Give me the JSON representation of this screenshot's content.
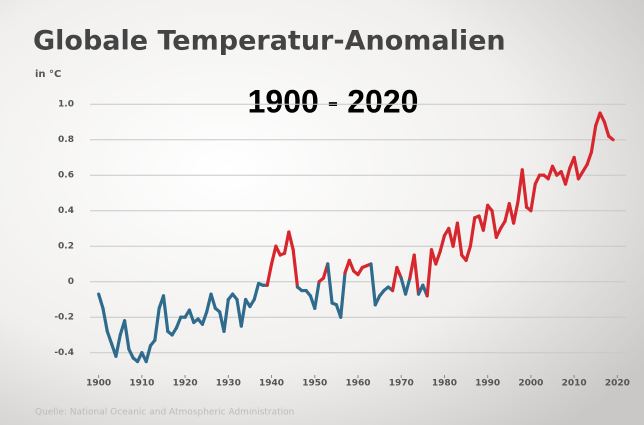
{
  "chart_data": {
    "type": "line",
    "title": "Globale Temperatur-Anomalien",
    "subtitle": "in °C",
    "annotation": "1900 - 2020",
    "source": "Quelle: National Oceanic and Atmospheric Administration",
    "colors": {
      "above": "#d7262d",
      "below": "#2f6b8c"
    },
    "x": [
      1900,
      1901,
      1902,
      1903,
      1904,
      1905,
      1906,
      1907,
      1908,
      1909,
      1910,
      1911,
      1912,
      1913,
      1914,
      1915,
      1916,
      1917,
      1918,
      1919,
      1920,
      1921,
      1922,
      1923,
      1924,
      1925,
      1926,
      1927,
      1928,
      1929,
      1930,
      1931,
      1932,
      1933,
      1934,
      1935,
      1936,
      1937,
      1938,
      1939,
      1940,
      1941,
      1942,
      1943,
      1944,
      1945,
      1946,
      1947,
      1948,
      1949,
      1950,
      1951,
      1952,
      1953,
      1954,
      1955,
      1956,
      1957,
      1958,
      1959,
      1960,
      1961,
      1962,
      1963,
      1964,
      1965,
      1966,
      1967,
      1968,
      1969,
      1970,
      1971,
      1972,
      1973,
      1974,
      1975,
      1976,
      1977,
      1978,
      1979,
      1980,
      1981,
      1982,
      1983,
      1984,
      1985,
      1986,
      1987,
      1988,
      1989,
      1990,
      1991,
      1992,
      1993,
      1994,
      1995,
      1996,
      1997,
      1998,
      1999,
      2000,
      2001,
      2002,
      2003,
      2004,
      2005,
      2006,
      2007,
      2008,
      2009,
      2010,
      2011,
      2012,
      2013,
      2014,
      2015,
      2016,
      2017,
      2018,
      2019
    ],
    "values": [
      -0.07,
      -0.15,
      -0.28,
      -0.35,
      -0.42,
      -0.3,
      -0.22,
      -0.38,
      -0.43,
      -0.45,
      -0.4,
      -0.45,
      -0.36,
      -0.33,
      -0.15,
      -0.08,
      -0.28,
      -0.3,
      -0.26,
      -0.2,
      -0.2,
      -0.16,
      -0.23,
      -0.21,
      -0.24,
      -0.17,
      -0.07,
      -0.15,
      -0.17,
      -0.28,
      -0.1,
      -0.07,
      -0.1,
      -0.25,
      -0.1,
      -0.14,
      -0.1,
      -0.01,
      -0.02,
      -0.02,
      0.1,
      0.2,
      0.15,
      0.16,
      0.28,
      0.18,
      -0.03,
      -0.05,
      -0.05,
      -0.08,
      -0.15,
      0,
      0.02,
      0.1,
      -0.12,
      -0.13,
      -0.2,
      0.05,
      0.12,
      0.06,
      0.04,
      0.08,
      0.09,
      0.1,
      -0.13,
      -0.08,
      -0.05,
      -0.03,
      -0.05,
      0.08,
      0.02,
      -0.07,
      0.02,
      0.15,
      -0.07,
      -0.02,
      -0.08,
      0.18,
      0.1,
      0.17,
      0.26,
      0.3,
      0.2,
      0.33,
      0.15,
      0.12,
      0.2,
      0.36,
      0.37,
      0.29,
      0.43,
      0.4,
      0.25,
      0.3,
      0.34,
      0.44,
      0.33,
      0.45,
      0.63,
      0.42,
      0.4,
      0.55,
      0.6,
      0.6,
      0.58,
      0.65,
      0.6,
      0.62,
      0.55,
      0.64,
      0.7,
      0.58,
      0.62,
      0.66,
      0.73,
      0.88,
      0.95,
      0.9,
      0.82,
      0.8
    ],
    "xlim": [
      1898,
      2022
    ],
    "xticks": [
      1900,
      1910,
      1920,
      1930,
      1940,
      1950,
      1960,
      1970,
      1980,
      1990,
      2000,
      2010,
      2020
    ],
    "ylim": [
      -0.52,
      1.08
    ],
    "yticks": [
      -0.4,
      -0.2,
      0,
      0.2,
      0.4,
      0.6,
      0.8,
      {
        "value": 1,
        "label": "1.0"
      }
    ],
    "grid": true
  }
}
